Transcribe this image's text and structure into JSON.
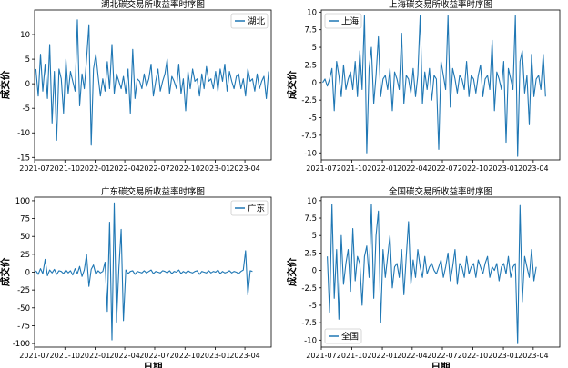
{
  "chart_data": [
    {
      "type": "line",
      "title": "湖北碳交易所收益率时序图",
      "xlabel": "",
      "ylabel": "成交价",
      "legend": "top-right",
      "grid": false,
      "xlim": [
        "2021-07-01",
        "2023-06-20"
      ],
      "ylim": [
        -15.5,
        15
      ],
      "xticks": [
        "2021-07",
        "2021-10",
        "2022-01",
        "2022-04",
        "2022-07",
        "2022-10",
        "2023-01",
        "2023-04"
      ],
      "yticks": [
        -15,
        -10,
        -5,
        0,
        5,
        10
      ],
      "series": [
        {
          "name": "湖北",
          "color": "#1f77b4",
          "start": "2021-07-05",
          "step_days": 7,
          "values": [
            3,
            -2.5,
            6,
            -1.5,
            4,
            -3,
            8,
            -8,
            2.5,
            -11.5,
            3,
            1,
            -6,
            5,
            -2,
            2.5,
            0.5,
            -1.5,
            13,
            -4.5,
            2,
            -1,
            5,
            12,
            -12.5,
            3,
            6,
            1.5,
            -2.5,
            1,
            -1.5,
            4.5,
            -1,
            8,
            -2,
            2,
            0.5,
            -1,
            1.5,
            -2,
            3,
            -6,
            7,
            -3,
            1,
            0.5,
            -1,
            2,
            -0.5,
            1,
            4,
            -2.5,
            0.5,
            3,
            -1.5,
            0.5,
            2,
            5,
            -2,
            1.5,
            0.5,
            -1,
            4,
            -2,
            1,
            -5.5,
            2.5,
            -1,
            3,
            0.5,
            1,
            -2.5,
            2,
            -1,
            3.5,
            0.5,
            1,
            -1,
            2.5,
            -1.5,
            3,
            0.5,
            4,
            -1.5,
            2.5,
            0.5,
            -1,
            1.5,
            2,
            -1,
            1,
            -2.5,
            3,
            0.5,
            1,
            -1.5,
            2,
            -1,
            0.5,
            1.5,
            -3,
            2.5
          ]
        }
      ]
    },
    {
      "type": "line",
      "title": "上海碳交易所收益率时序图",
      "xlabel": "",
      "ylabel": "成交价",
      "legend": "top-left",
      "grid": false,
      "xlim": [
        "2021-07-01",
        "2023-06-20"
      ],
      "ylim": [
        -11,
        10.3
      ],
      "xticks": [
        "2021-07",
        "2021-10",
        "2022-01",
        "2022-04",
        "2022-07",
        "2022-10",
        "2023-01",
        "2023-04"
      ],
      "yticks": [
        -10,
        -7.5,
        -5,
        -2.5,
        0,
        2.5,
        5,
        7.5,
        10
      ],
      "series": [
        {
          "name": "上海",
          "color": "#1f77b4",
          "start": "2021-07-05",
          "step_days": 7,
          "values": [
            0,
            0.5,
            -0.5,
            0.5,
            2,
            -4,
            3,
            1,
            -2,
            2.5,
            -1,
            0.5,
            1.5,
            -1,
            3,
            -2,
            4.5,
            -1,
            9.5,
            -10,
            2,
            5,
            -3,
            1,
            6.5,
            -2,
            0.5,
            1,
            -1,
            2,
            -4,
            1.5,
            0.5,
            -1,
            7,
            -3,
            1,
            0.5,
            -1.5,
            2,
            -2,
            1,
            9.5,
            -3,
            1.5,
            -1,
            2,
            -2.5,
            1,
            0.5,
            -9.5,
            3,
            1,
            -1,
            9.5,
            -3.5,
            2,
            0.5,
            -1.5,
            1,
            0.5,
            -1,
            3,
            -2,
            1,
            0.5,
            -1.5,
            1,
            2.5,
            -2,
            0.5,
            1,
            -1,
            6,
            -4,
            1.5,
            0.5,
            -1,
            3,
            -8.5,
            2,
            0.5,
            -1,
            9.5,
            -10.5,
            3,
            4.5,
            -1.5,
            1,
            -6,
            4,
            -2,
            0.5,
            1,
            -1,
            4,
            -2
          ]
        }
      ]
    },
    {
      "type": "line",
      "title": "广东碳交易所收益率时序图",
      "xlabel": "日期",
      "ylabel": "成交价",
      "legend": "top-right",
      "grid": false,
      "xlim": [
        "2021-07-01",
        "2023-06-20"
      ],
      "ylim": [
        -105,
        105
      ],
      "xticks": [
        "2021-07",
        "2021-10",
        "2022-01",
        "2022-04",
        "2022-07",
        "2022-10",
        "2023-01",
        "2023-04"
      ],
      "yticks": [
        -100,
        -75,
        -50,
        -25,
        0,
        25,
        50,
        75,
        100
      ],
      "series": [
        {
          "name": "广东",
          "color": "#1f77b4",
          "start": "2021-07-05",
          "step_days": 7,
          "values": [
            2,
            -3,
            5,
            -2,
            18,
            -5,
            3,
            -1,
            4,
            -3,
            2,
            1,
            -2,
            3,
            -1,
            2,
            -4,
            5,
            -2,
            8,
            -6,
            3,
            25,
            -20,
            4,
            10,
            -3,
            2,
            -1,
            1,
            14,
            -55,
            70,
            -95,
            97,
            -70,
            5,
            60,
            -68,
            3,
            -2,
            1,
            2,
            -3,
            1,
            0,
            -1,
            2,
            -1,
            1,
            3,
            -2,
            1,
            0,
            -1,
            2,
            1,
            -1,
            2,
            -2,
            1,
            0,
            3,
            -2,
            1,
            -1,
            2,
            0,
            -1,
            1,
            2,
            -3,
            1,
            0,
            -1,
            2,
            -1,
            1,
            0,
            3,
            -2,
            1,
            -1,
            0,
            2,
            -1,
            1,
            0,
            -2,
            1,
            3,
            30,
            -32,
            2,
            1
          ]
        }
      ]
    },
    {
      "type": "line",
      "title": "全国碳交易所收益率时序图",
      "xlabel": "日期",
      "ylabel": "成交价",
      "legend": "lower-left",
      "grid": false,
      "xlim": [
        "2021-07-01",
        "2023-06-20"
      ],
      "ylim": [
        -11,
        10.5
      ],
      "xticks": [
        "2021-07",
        "2021-10",
        "2022-01",
        "2022-04",
        "2022-07",
        "2022-10",
        "2023-01",
        "2023-04"
      ],
      "yticks": [
        -10,
        -7.5,
        -5,
        -2.5,
        0,
        2.5,
        5,
        7.5,
        10
      ],
      "series": [
        {
          "name": "全国",
          "color": "#1f77b4",
          "start": "2021-07-19",
          "step_days": 7,
          "values": [
            2,
            -6,
            9.5,
            -4,
            3,
            -7,
            5,
            -2,
            1,
            3,
            -3,
            6,
            -1.5,
            2,
            1,
            -5,
            2,
            3.5,
            -1,
            9.5,
            -4,
            5,
            8.5,
            -7.5,
            3,
            -1,
            2,
            5,
            -2.5,
            0.5,
            1,
            -1,
            3,
            -3.5,
            2,
            7,
            -2,
            1.5,
            -1,
            3,
            0.5,
            -1,
            2,
            -0.5,
            0.5,
            1,
            0,
            -0.5,
            0.5,
            1.5,
            -1,
            0.5,
            2.5,
            -1.5,
            0.5,
            3,
            -2,
            1,
            0.5,
            -1,
            2,
            -0.5,
            0.5,
            1,
            -1,
            1.5,
            0.5,
            -0.5,
            1,
            2,
            -1,
            0.5,
            0,
            1,
            -1.5,
            0.5,
            1,
            -0.5,
            2,
            -1,
            0.5,
            1,
            -10.5,
            9.3,
            -4.5,
            2,
            0.5,
            -1,
            3,
            -1.5,
            0.5
          ]
        }
      ]
    }
  ]
}
